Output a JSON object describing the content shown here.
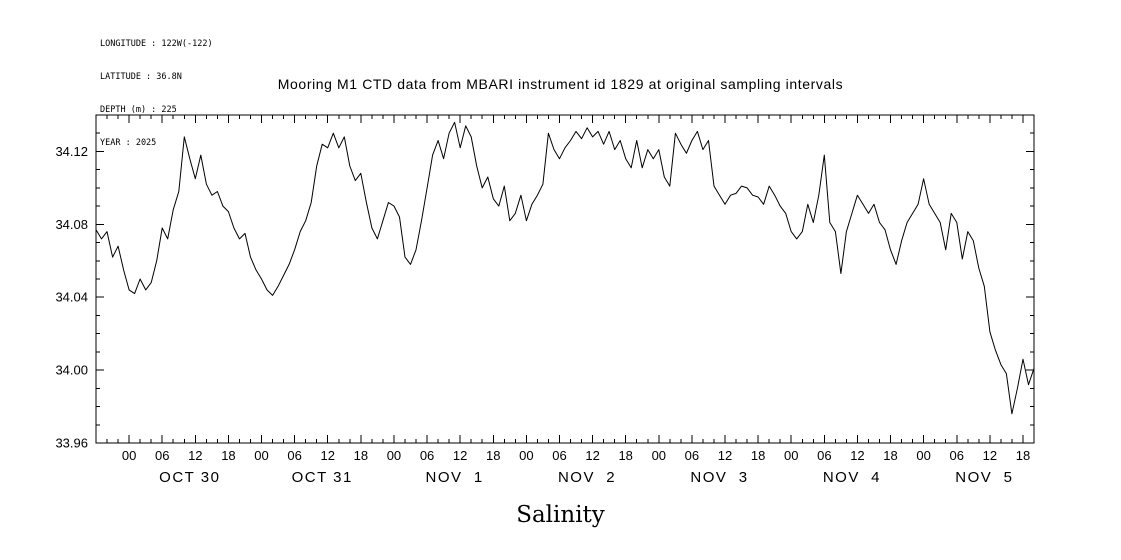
{
  "header_info": {
    "lines": [
      "LONGITUDE : 122W(-122)",
      "LATITUDE : 36.8N",
      "DEPTH (m) : 225",
      "YEAR : 2025"
    ]
  },
  "chart_data": {
    "type": "line",
    "title": "Mooring M1 CTD data from MBARI instrument id 1829 at original sampling intervals",
    "xlabel": "Salinity",
    "ylabel": "",
    "background": "#ffffff",
    "line_color": "#000000",
    "grid": false,
    "legend": "none",
    "ylim": [
      33.96,
      34.14
    ],
    "y_ticks": [
      33.96,
      34.0,
      34.04,
      34.08,
      34.12
    ],
    "y_minor_tick_step": 0.01,
    "xlim_hours": [
      -6,
      164
    ],
    "x_hours_reference": "hours from OCT 30 00:00",
    "x_hour_tick_labels": [
      "00",
      "06",
      "12",
      "18"
    ],
    "x_minor_tick_step_hours": 2,
    "day_labels": [
      "OCT 30",
      "OCT 31",
      "NOV  1",
      "NOV  2",
      "NOV  3",
      "NOV  4",
      "NOV  5"
    ],
    "series": [
      {
        "name": "salinity",
        "x_start_hour": -6,
        "x_step_hours": 1,
        "values": [
          34.077,
          34.072,
          34.076,
          34.062,
          34.068,
          34.055,
          34.044,
          34.042,
          34.05,
          34.044,
          34.048,
          34.06,
          34.078,
          34.072,
          34.088,
          34.098,
          34.128,
          34.116,
          34.105,
          34.118,
          34.102,
          34.096,
          34.098,
          34.09,
          34.087,
          34.078,
          34.072,
          34.075,
          34.062,
          34.055,
          34.05,
          34.044,
          34.041,
          34.046,
          34.052,
          34.058,
          34.066,
          34.076,
          34.082,
          34.092,
          34.112,
          34.124,
          34.122,
          34.13,
          34.122,
          34.128,
          34.112,
          34.104,
          34.108,
          34.092,
          34.078,
          34.072,
          34.082,
          34.092,
          34.09,
          34.084,
          34.062,
          34.058,
          34.066,
          34.082,
          34.1,
          34.118,
          34.126,
          34.116,
          34.13,
          34.136,
          34.122,
          34.134,
          34.128,
          34.112,
          34.1,
          34.106,
          34.094,
          34.09,
          34.101,
          34.082,
          34.086,
          34.096,
          34.082,
          34.091,
          34.096,
          34.102,
          34.13,
          34.121,
          34.116,
          34.122,
          34.126,
          34.131,
          34.127,
          34.133,
          34.128,
          34.131,
          34.124,
          34.131,
          34.121,
          34.126,
          34.116,
          34.111,
          34.126,
          34.111,
          34.121,
          34.116,
          34.121,
          34.106,
          34.101,
          34.13,
          34.124,
          34.119,
          34.126,
          34.131,
          34.121,
          34.126,
          34.101,
          34.096,
          34.091,
          34.096,
          34.097,
          34.101,
          34.1,
          34.096,
          34.095,
          34.091,
          34.101,
          34.096,
          34.09,
          34.086,
          34.076,
          34.072,
          34.076,
          34.091,
          34.081,
          34.096,
          34.118,
          34.081,
          34.076,
          34.053,
          34.076,
          34.086,
          34.096,
          34.091,
          34.086,
          34.091,
          34.081,
          34.077,
          34.066,
          34.058,
          34.071,
          34.081,
          34.086,
          34.091,
          34.105,
          34.091,
          34.086,
          34.081,
          34.066,
          34.086,
          34.081,
          34.061,
          34.076,
          34.071,
          34.056,
          34.046,
          34.021,
          34.011,
          34.003,
          33.998,
          33.976,
          33.99,
          34.006,
          33.992,
          34.001
        ]
      }
    ]
  }
}
